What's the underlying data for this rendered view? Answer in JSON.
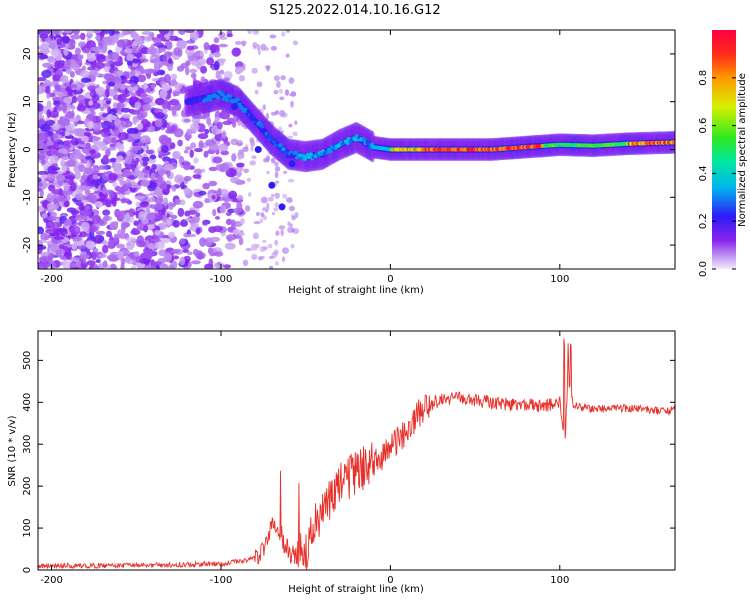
{
  "title": "S125.2022.014.10.16.G12",
  "chart_data": [
    {
      "type": "heatmap",
      "xlabel": "Height of straight line (km)",
      "ylabel": "Frequency (Hz)",
      "xlim": [
        -208,
        168
      ],
      "ylim": [
        -25,
        25
      ],
      "xticks": [
        -200,
        -100,
        0,
        100
      ],
      "xtick_labels": [
        "-200",
        "-100",
        "0",
        "100"
      ],
      "yticks": [
        -20,
        -10,
        0,
        10,
        20
      ],
      "ytick_labels": [
        "-20",
        "-10",
        "0",
        "10",
        "20"
      ],
      "colorbar": {
        "label": "Normalized spectral amplitude",
        "range": [
          0,
          1
        ],
        "ticks": [
          0.0,
          0.2,
          0.4,
          0.6,
          0.8
        ],
        "tick_labels": [
          "0.0",
          "0.2",
          "0.4",
          "0.6",
          "0.8"
        ]
      },
      "ridge": {
        "x": [
          -120,
          -100,
          -90,
          -80,
          -70,
          -60,
          -50,
          -40,
          -30,
          -20,
          -10,
          0,
          20,
          40,
          60,
          80,
          100,
          120,
          140,
          168
        ],
        "y": [
          10,
          11.5,
          10,
          6,
          2,
          -1,
          -1.5,
          -1,
          1,
          2.5,
          0.5,
          0,
          0,
          0,
          0,
          0.5,
          1,
          0.8,
          1.2,
          1.5
        ]
      },
      "grid": false
    },
    {
      "type": "line",
      "xlabel": "Height of straight line (km)",
      "ylabel": "SNR (10 * v/v)",
      "xlim": [
        -208,
        168
      ],
      "ylim": [
        0,
        570
      ],
      "xticks": [
        -200,
        -100,
        0,
        100
      ],
      "xtick_labels": [
        "-200",
        "-100",
        "0",
        "100"
      ],
      "yticks": [
        0,
        100,
        200,
        300,
        400,
        500
      ],
      "ytick_labels": [
        "0",
        "100",
        "200",
        "300",
        "400",
        "500"
      ],
      "color": "#e8302a",
      "series": [
        {
          "x": [
            -208,
            -180,
            -150,
            -120,
            -100,
            -90,
            -80,
            -75,
            -70,
            -65,
            -62,
            -58,
            -55,
            -50,
            -45,
            -40,
            -35,
            -30,
            -25,
            -20,
            -15,
            -10,
            -5,
            0,
            5,
            10,
            15,
            20,
            25,
            30,
            40,
            50,
            60,
            70,
            80,
            90,
            95,
            100,
            103,
            105,
            106,
            108,
            110,
            120,
            140,
            160,
            168
          ],
          "y": [
            10,
            10,
            11,
            13,
            15,
            20,
            28,
            50,
            110,
            90,
            55,
            35,
            30,
            50,
            100,
            140,
            170,
            200,
            220,
            230,
            245,
            255,
            270,
            290,
            310,
            335,
            365,
            390,
            400,
            405,
            410,
            405,
            400,
            395,
            395,
            390,
            395,
            400,
            300,
            490,
            420,
            390,
            390,
            385,
            385,
            380,
            380
          ]
        }
      ],
      "grid": false
    }
  ]
}
